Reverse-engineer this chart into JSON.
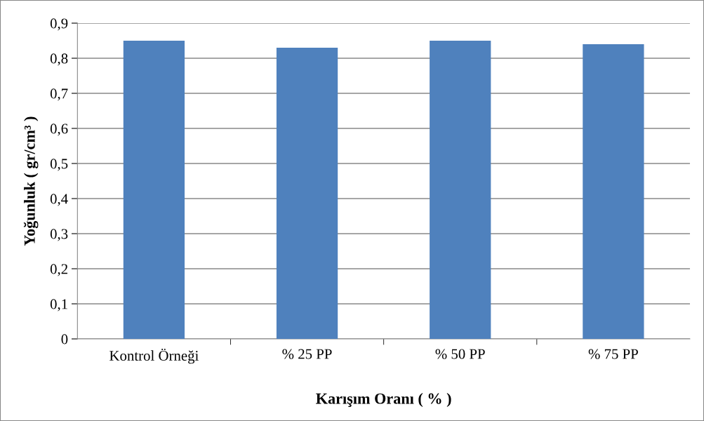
{
  "chart_data": {
    "type": "bar",
    "xlabel": "Karışım Oranı ( % )",
    "ylabel": "Yoğunluk ( gr/cm³ )",
    "categories": [
      "Kontrol Örneği",
      "% 25 PP",
      "% 50 PP",
      "% 75 PP"
    ],
    "values": [
      0.85,
      0.83,
      0.85,
      0.84
    ],
    "color": "#4f81bd",
    "ylim": [
      0,
      0.9
    ],
    "yticks": [
      0,
      {
        "value": 0.1,
        "label": "0,1"
      },
      {
        "value": 0.2,
        "label": "0,2"
      },
      {
        "value": 0.3,
        "label": "0,3"
      },
      {
        "value": 0.4,
        "label": "0,4"
      },
      {
        "value": 0.5,
        "label": "0,5"
      },
      {
        "value": 0.6,
        "label": "0,6"
      },
      {
        "value": 0.7,
        "label": "0,7"
      },
      {
        "value": 0.8,
        "label": "0,8"
      },
      {
        "value": 0.9,
        "label": "0,9"
      }
    ],
    "grid": "y"
  }
}
